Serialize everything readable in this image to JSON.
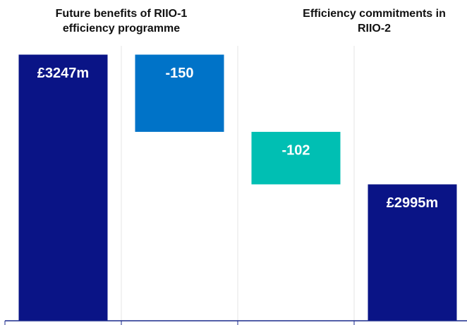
{
  "chart_data": {
    "type": "waterfall",
    "annotations": [
      {
        "text": "Future benefits of RIIO-1 efficiency programme"
      },
      {
        "text": "Efficiency commitments in RIIO-2"
      }
    ],
    "categories": [
      null,
      null,
      null,
      null
    ],
    "values": [
      3247,
      -150,
      -102,
      2995
    ],
    "value_labels": [
      "£3247m",
      "-150",
      "-102",
      "£2995m"
    ],
    "measure": [
      "absolute",
      "relative",
      "relative",
      "total"
    ],
    "colors": [
      "#0a1486",
      "#0073c8",
      "#00bfb3",
      "#0a1486"
    ],
    "ylim": [
      2730,
      3260
    ]
  }
}
